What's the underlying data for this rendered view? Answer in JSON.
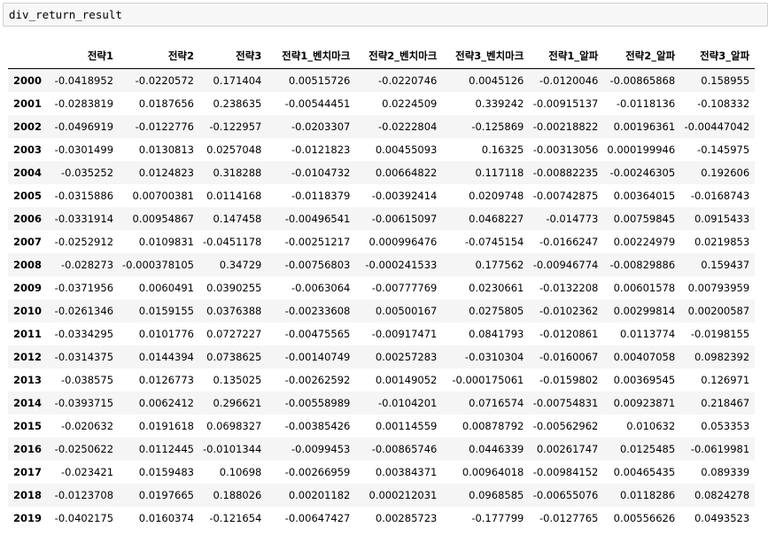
{
  "input_cell": {
    "code": "div_return_result"
  },
  "table": {
    "columns": [
      "전략1",
      "전략2",
      "전략3",
      "전략1_벤치마크",
      "전략2_벤치마크",
      "전략3_벤치마크",
      "전략1_알파",
      "전략2_알파",
      "전략3_알파"
    ],
    "rows": [
      {
        "index": "2000",
        "values": [
          "-0.0418952",
          "-0.0220572",
          "0.171404",
          "0.00515726",
          "-0.0220746",
          "0.0045126",
          "-0.0120046",
          "-0.00865868",
          "0.158955"
        ]
      },
      {
        "index": "2001",
        "values": [
          "-0.0283819",
          "0.0187656",
          "0.238635",
          "-0.00544451",
          "0.0224509",
          "0.339242",
          "-0.00915137",
          "-0.0118136",
          "-0.108332"
        ]
      },
      {
        "index": "2002",
        "values": [
          "-0.0496919",
          "-0.0122776",
          "-0.122957",
          "-0.0203307",
          "-0.0222804",
          "-0.125869",
          "-0.00218822",
          "0.00196361",
          "-0.00447042"
        ]
      },
      {
        "index": "2003",
        "values": [
          "-0.0301499",
          "0.0130813",
          "0.0257048",
          "-0.0121823",
          "0.00455093",
          "0.16325",
          "-0.00313056",
          "0.000199946",
          "-0.145975"
        ]
      },
      {
        "index": "2004",
        "values": [
          "-0.035252",
          "0.0124823",
          "0.318288",
          "-0.0104732",
          "0.00664822",
          "0.117118",
          "-0.00882235",
          "-0.00246305",
          "0.192606"
        ]
      },
      {
        "index": "2005",
        "values": [
          "-0.0315886",
          "0.00700381",
          "0.0114168",
          "-0.0118379",
          "-0.00392414",
          "0.0209748",
          "-0.00742875",
          "0.00364015",
          "-0.0168743"
        ]
      },
      {
        "index": "2006",
        "values": [
          "-0.0331914",
          "0.00954867",
          "0.147458",
          "-0.00496541",
          "-0.00615097",
          "0.0468227",
          "-0.014773",
          "0.00759845",
          "0.0915433"
        ]
      },
      {
        "index": "2007",
        "values": [
          "-0.0252912",
          "0.0109831",
          "-0.0451178",
          "-0.00251217",
          "0.000996476",
          "-0.0745154",
          "-0.0166247",
          "0.00224979",
          "0.0219853"
        ]
      },
      {
        "index": "2008",
        "values": [
          "-0.028273",
          "-0.000378105",
          "0.34729",
          "-0.00756803",
          "-0.000241533",
          "0.177562",
          "-0.00946774",
          "-0.00829886",
          "0.159437"
        ]
      },
      {
        "index": "2009",
        "values": [
          "-0.0371956",
          "0.0060491",
          "0.0390255",
          "-0.0063064",
          "-0.00777769",
          "0.0230661",
          "-0.0132208",
          "0.00601578",
          "0.00793959"
        ]
      },
      {
        "index": "2010",
        "values": [
          "-0.0261346",
          "0.0159155",
          "0.0376388",
          "-0.00233608",
          "0.00500167",
          "0.0275805",
          "-0.0102362",
          "0.00299814",
          "0.00200587"
        ]
      },
      {
        "index": "2011",
        "values": [
          "-0.0334295",
          "0.0101776",
          "0.0727227",
          "-0.00475565",
          "-0.00917471",
          "0.0841793",
          "-0.0120861",
          "0.0113774",
          "-0.0198155"
        ]
      },
      {
        "index": "2012",
        "values": [
          "-0.0314375",
          "0.0144394",
          "0.0738625",
          "-0.00140749",
          "0.00257283",
          "-0.0310304",
          "-0.0160067",
          "0.00407058",
          "0.0982392"
        ]
      },
      {
        "index": "2013",
        "values": [
          "-0.038575",
          "0.0126773",
          "0.135025",
          "-0.00262592",
          "0.00149052",
          "-0.000175061",
          "-0.0159802",
          "0.00369545",
          "0.126971"
        ]
      },
      {
        "index": "2014",
        "values": [
          "-0.0393715",
          "0.0062412",
          "0.296621",
          "-0.00558989",
          "-0.0104201",
          "0.0716574",
          "-0.00754831",
          "0.00923871",
          "0.218467"
        ]
      },
      {
        "index": "2015",
        "values": [
          "-0.020632",
          "0.0191618",
          "0.0698327",
          "-0.00385426",
          "0.00114559",
          "0.00878792",
          "-0.00562962",
          "0.010632",
          "0.053353"
        ]
      },
      {
        "index": "2016",
        "values": [
          "-0.0250622",
          "0.0112445",
          "-0.0101344",
          "-0.0099453",
          "-0.00865746",
          "0.0446339",
          "0.00261747",
          "0.0125485",
          "-0.0619981"
        ]
      },
      {
        "index": "2017",
        "values": [
          "-0.023421",
          "0.0159483",
          "0.10698",
          "-0.00266959",
          "0.00384371",
          "0.00964018",
          "-0.00984152",
          "0.00465435",
          "0.089339"
        ]
      },
      {
        "index": "2018",
        "values": [
          "-0.0123708",
          "0.0197665",
          "0.188026",
          "0.00201182",
          "0.000212031",
          "0.0968585",
          "-0.00655076",
          "0.0118286",
          "0.0824278"
        ]
      },
      {
        "index": "2019",
        "values": [
          "-0.0402175",
          "0.0160374",
          "-0.121654",
          "-0.00647427",
          "0.00285723",
          "-0.177799",
          "-0.0127765",
          "0.00556626",
          "0.0493523"
        ]
      }
    ]
  }
}
